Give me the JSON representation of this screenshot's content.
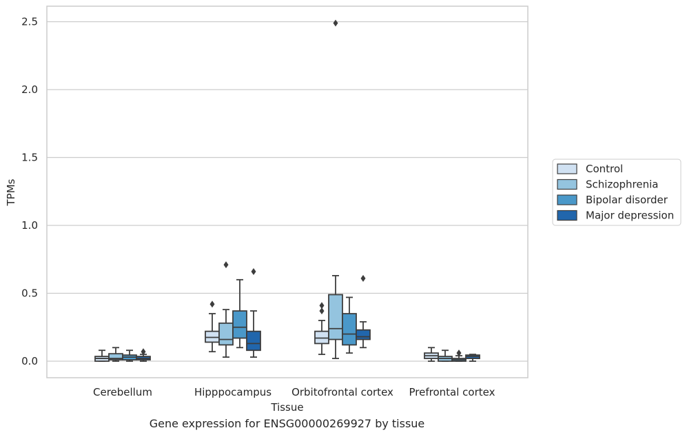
{
  "caption": "Gene expression for ENSG00000269927 by tissue",
  "chart_data": {
    "type": "box",
    "xlabel": "Tissue",
    "ylabel": "TPMs",
    "ylim": [
      -0.12,
      2.62
    ],
    "yticks": [
      0.0,
      0.5,
      1.0,
      1.5,
      2.0,
      2.5
    ],
    "ytick_labels": [
      "0.0",
      "0.5",
      "1.0",
      "1.5",
      "2.0",
      "2.5"
    ],
    "grid": "horizontal",
    "categories": [
      "Cerebellum",
      "Hipppocampus",
      "Orbitofrontal cortex",
      "Prefrontal cortex"
    ],
    "legend_position": "right",
    "series": [
      {
        "name": "Control",
        "color": "#d0e1f2",
        "boxes": [
          {
            "whislo": 0.0,
            "q1": 0.0,
            "med": 0.02,
            "q3": 0.035,
            "whishi": 0.08,
            "fliers": []
          },
          {
            "whislo": 0.07,
            "q1": 0.14,
            "med": 0.175,
            "q3": 0.22,
            "whishi": 0.35,
            "fliers": [
              0.42
            ]
          },
          {
            "whislo": 0.05,
            "q1": 0.13,
            "med": 0.17,
            "q3": 0.22,
            "whishi": 0.3,
            "fliers": [
              0.37,
              0.41
            ]
          },
          {
            "whislo": 0.0,
            "q1": 0.02,
            "med": 0.04,
            "q3": 0.06,
            "whishi": 0.1,
            "fliers": []
          }
        ]
      },
      {
        "name": "Schizophrenia",
        "color": "#94c4df",
        "boxes": [
          {
            "whislo": 0.0,
            "q1": 0.01,
            "med": 0.02,
            "q3": 0.055,
            "whishi": 0.1,
            "fliers": []
          },
          {
            "whislo": 0.03,
            "q1": 0.12,
            "med": 0.16,
            "q3": 0.28,
            "whishi": 0.38,
            "fliers": [
              0.71
            ]
          },
          {
            "whislo": 0.02,
            "q1": 0.16,
            "med": 0.24,
            "q3": 0.49,
            "whishi": 0.63,
            "fliers": [
              2.49
            ]
          },
          {
            "whislo": 0.0,
            "q1": 0.0,
            "med": 0.02,
            "q3": 0.035,
            "whishi": 0.08,
            "fliers": []
          }
        ]
      },
      {
        "name": "Bipolar disorder",
        "color": "#4a98c9",
        "boxes": [
          {
            "whislo": 0.0,
            "q1": 0.01,
            "med": 0.03,
            "q3": 0.045,
            "whishi": 0.08,
            "fliers": []
          },
          {
            "whislo": 0.1,
            "q1": 0.17,
            "med": 0.25,
            "q3": 0.37,
            "whishi": 0.6,
            "fliers": []
          },
          {
            "whislo": 0.06,
            "q1": 0.12,
            "med": 0.2,
            "q3": 0.35,
            "whishi": 0.47,
            "fliers": []
          },
          {
            "whislo": 0.0,
            "q1": 0.0,
            "med": 0.01,
            "q3": 0.02,
            "whishi": 0.04,
            "fliers": [
              0.06
            ]
          }
        ]
      },
      {
        "name": "Major depression",
        "color": "#2166ac",
        "boxes": [
          {
            "whislo": 0.0,
            "q1": 0.01,
            "med": 0.02,
            "q3": 0.035,
            "whishi": 0.05,
            "fliers": [
              0.07
            ]
          },
          {
            "whislo": 0.03,
            "q1": 0.08,
            "med": 0.13,
            "q3": 0.22,
            "whishi": 0.37,
            "fliers": [
              0.66
            ]
          },
          {
            "whislo": 0.1,
            "q1": 0.16,
            "med": 0.18,
            "q3": 0.23,
            "whishi": 0.29,
            "fliers": [
              0.61
            ]
          },
          {
            "whislo": 0.0,
            "q1": 0.02,
            "med": 0.035,
            "q3": 0.045,
            "whishi": 0.05,
            "fliers": []
          }
        ]
      }
    ]
  }
}
